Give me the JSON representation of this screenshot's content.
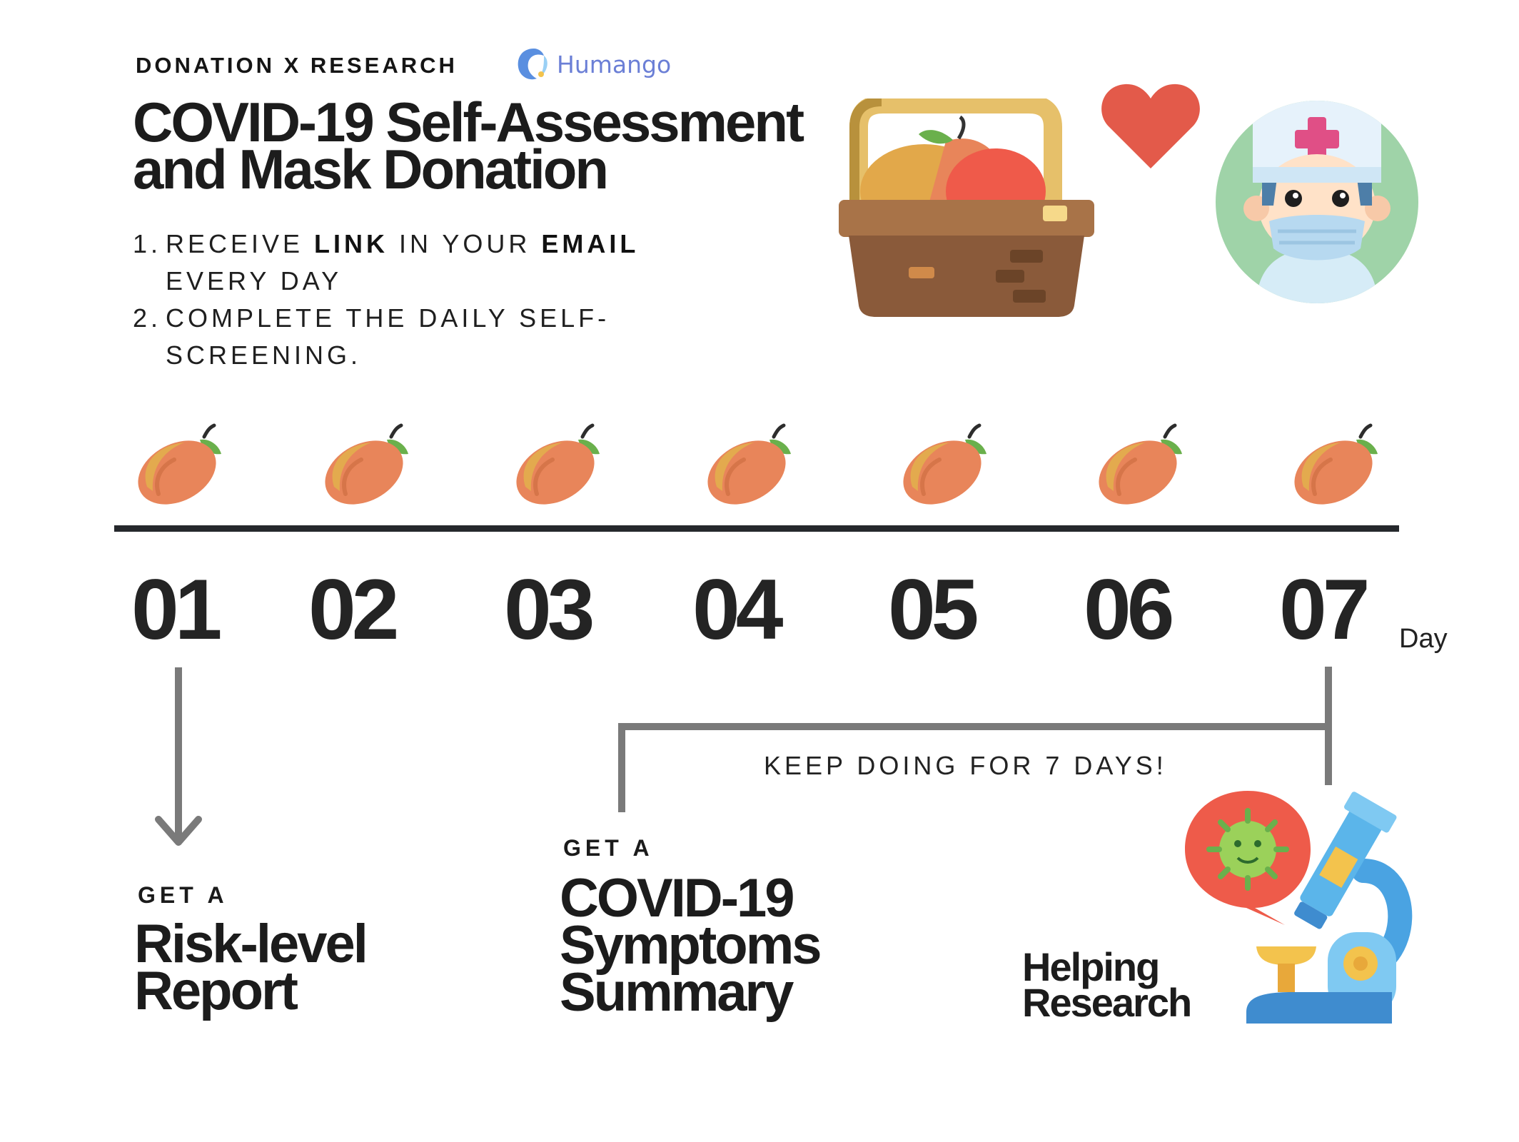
{
  "header": {
    "kicker": "DONATION X RESEARCH",
    "brand": "Humango",
    "title_line1": "COVID-19 Self-Assessment",
    "title_line2": "and Mask Donation"
  },
  "steps": [
    {
      "num": "1.",
      "text_a": "RECEIVE ",
      "bold_a": "LINK",
      "text_b": " IN YOUR ",
      "bold_b": "EMAIL",
      "text_c": "EVERY DAY"
    },
    {
      "num": "2.",
      "text_a": "COMPLETE THE DAILY SELF-",
      "text_c": "SCREENING."
    }
  ],
  "timeline": {
    "days": [
      "01",
      "02",
      "03",
      "04",
      "05",
      "06",
      "07"
    ],
    "unit_label": "Day"
  },
  "bracket_label": "KEEP DOING FOR 7 DAYS!",
  "outcomes": {
    "risk": {
      "kicker": "GET A",
      "line1": "Risk-level",
      "line2": "Report"
    },
    "summary": {
      "kicker": "GET A",
      "line1": "COVID-19",
      "line2": "Symptoms",
      "line3": "Summary"
    },
    "research": {
      "line1": "Helping",
      "line2": "Research"
    }
  },
  "icons": [
    "humango-logo-icon",
    "fruit-basket-icon",
    "heart-icon",
    "doctor-mask-icon",
    "mango-icon",
    "virus-icon",
    "microscope-icon"
  ],
  "colors": {
    "dark": "#25282c",
    "connector": "#7a7a7a",
    "brand": "#6b7fd6",
    "heart": "#e35a4a",
    "mango": "#e8855a"
  }
}
